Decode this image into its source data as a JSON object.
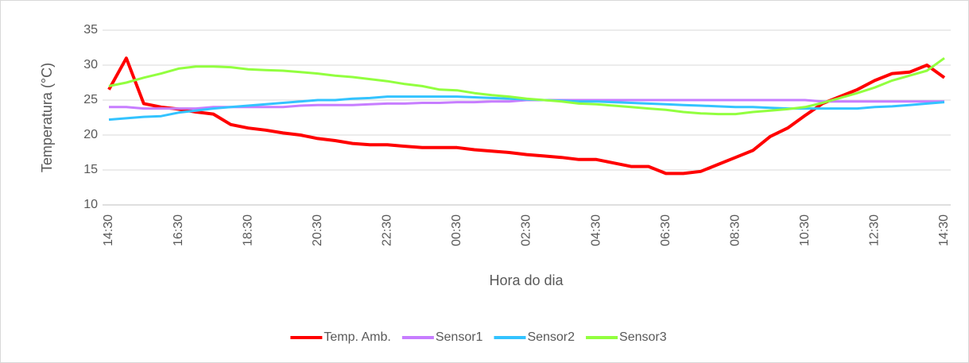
{
  "chart_data": {
    "type": "line",
    "xlabel": "Hora do dia",
    "ylabel": "Temperatura (°C)",
    "categories": [
      "14:30",
      null,
      null,
      null,
      "16:30",
      null,
      null,
      null,
      "18:30",
      null,
      null,
      null,
      "20:30",
      null,
      null,
      null,
      "22:30",
      null,
      null,
      null,
      "00:30",
      null,
      null,
      null,
      "02:30",
      null,
      null,
      null,
      "04:30",
      null,
      null,
      null,
      "06:30",
      null,
      null,
      null,
      "08:30",
      null,
      null,
      null,
      "10:30",
      null,
      null,
      null,
      "12:30",
      null,
      null,
      null,
      "14:30"
    ],
    "series": [
      {
        "name": "Temp. Amb.",
        "color": "#ff0000",
        "values": [
          26.5,
          31,
          24.5,
          24,
          23.7,
          23.3,
          23,
          21.5,
          21,
          20.7,
          20.3,
          20,
          19.5,
          19.2,
          18.8,
          18.6,
          18.6,
          18.4,
          18.2,
          18.2,
          18.2,
          17.9,
          17.7,
          17.5,
          17.2,
          17,
          16.8,
          16.5,
          16.5,
          16,
          15.5,
          15.5,
          14.5,
          14.5,
          14.8,
          15.8,
          16.8,
          17.8,
          19.8,
          21,
          22.8,
          24.5,
          25.5,
          26.5,
          27.8,
          28.8,
          29,
          30,
          28.2
        ]
      },
      {
        "name": "Sensor1",
        "color": "#c77dff",
        "values": [
          24,
          24,
          23.8,
          23.8,
          23.8,
          23.8,
          24,
          24,
          24,
          24,
          24,
          24.2,
          24.3,
          24.3,
          24.3,
          24.4,
          24.5,
          24.5,
          24.6,
          24.6,
          24.7,
          24.7,
          24.8,
          24.8,
          25,
          25,
          25,
          25,
          25,
          25,
          25,
          25,
          25,
          25,
          25,
          25,
          25,
          25,
          25,
          25,
          25,
          24.8,
          24.8,
          24.8,
          24.8,
          24.8,
          24.8,
          24.8,
          24.8
        ]
      },
      {
        "name": "Sensor2",
        "color": "#33c3ff",
        "values": [
          22.2,
          22.4,
          22.6,
          22.7,
          23.2,
          23.5,
          23.8,
          24,
          24.2,
          24.4,
          24.6,
          24.8,
          25,
          25,
          25.2,
          25.3,
          25.5,
          25.5,
          25.5,
          25.5,
          25.5,
          25.4,
          25.3,
          25.2,
          25.1,
          25,
          24.9,
          24.8,
          24.8,
          24.7,
          24.6,
          24.5,
          24.4,
          24.3,
          24.2,
          24.1,
          24,
          24,
          23.9,
          23.8,
          23.8,
          23.8,
          23.8,
          23.8,
          24,
          24.1,
          24.3,
          24.5,
          24.7
        ]
      },
      {
        "name": "Sensor3",
        "color": "#92ff3f",
        "values": [
          27,
          27.5,
          28.2,
          28.8,
          29.5,
          29.8,
          29.8,
          29.7,
          29.4,
          29.3,
          29.2,
          29,
          28.8,
          28.5,
          28.3,
          28,
          27.7,
          27.3,
          27,
          26.5,
          26.4,
          26,
          25.7,
          25.5,
          25.2,
          25,
          24.8,
          24.5,
          24.4,
          24.2,
          24,
          23.8,
          23.6,
          23.3,
          23.1,
          23,
          23,
          23.3,
          23.5,
          23.7,
          24,
          24.6,
          25.3,
          26,
          26.8,
          27.8,
          28.5,
          29.2,
          31
        ]
      }
    ],
    "ylim": [
      10,
      35
    ],
    "yticks": [
      10,
      15,
      20,
      25,
      30,
      35
    ],
    "grid": true,
    "legend": "bottom"
  }
}
